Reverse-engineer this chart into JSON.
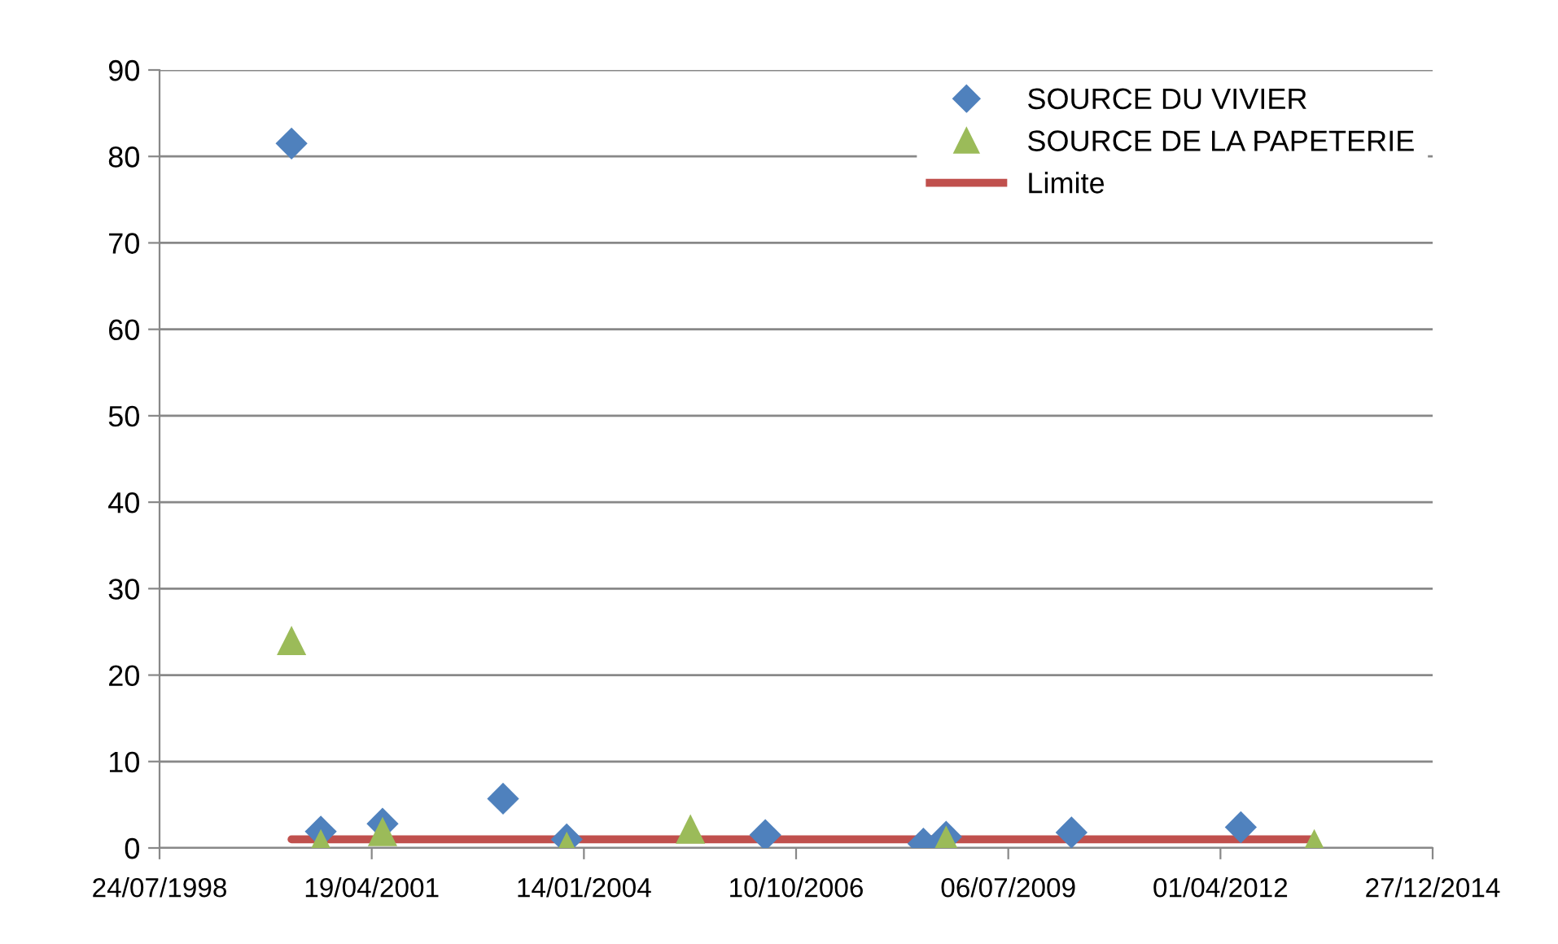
{
  "chart_data": {
    "type": "scatter",
    "series": [
      {
        "name": "SOURCE DU VIVIER",
        "color": "#4f81bd",
        "marker": "diamond",
        "x": [
          "2000-04-06",
          "2000-08-22",
          "2001-06-09",
          "2002-12-29",
          "2003-10-25",
          "2006-05-18",
          "2008-06-01",
          "2008-09-16",
          "2010-04-30",
          "2012-07-06"
        ],
        "values": [
          81.5,
          1.9,
          2.8,
          5.7,
          1.0,
          1.5,
          0.5,
          1.3,
          1.8,
          2.4
        ]
      },
      {
        "name": "SOURCE DE LA PAPETERIE",
        "color": "#9bbb59",
        "marker": "triangle",
        "x": [
          "2000-04-06",
          "2000-08-22",
          "2001-06-09",
          "2003-10-25",
          "2005-05-30",
          "2008-09-16",
          "2013-06-17"
        ],
        "values": [
          24,
          0.5,
          1.9,
          0.2,
          2.2,
          0.9,
          0.5
        ]
      },
      {
        "name": "Limite",
        "type": "line",
        "color": "#c0504d",
        "marker": "none",
        "line_style": "solid",
        "x": [
          "2000-04-06",
          "2013-06-17"
        ],
        "values": [
          1,
          1
        ]
      }
    ],
    "xlim": [
      "1998-07-24",
      "2014-12-27"
    ],
    "xticks": [
      {
        "value": "1998-07-24",
        "label": "24/07/1998"
      },
      {
        "value": "2001-04-19",
        "label": "19/04/2001"
      },
      {
        "value": "2004-01-14",
        "label": "14/01/2004"
      },
      {
        "value": "2006-10-10",
        "label": "10/10/2006"
      },
      {
        "value": "2009-07-06",
        "label": "06/07/2009"
      },
      {
        "value": "2012-04-01",
        "label": "01/04/2012"
      },
      {
        "value": "2014-12-27",
        "label": "27/12/2014"
      }
    ],
    "ylim": [
      0,
      90
    ],
    "yticks": [
      0,
      10,
      20,
      30,
      40,
      50,
      60,
      70,
      80,
      90
    ],
    "grid": "y",
    "legend": "top right"
  }
}
